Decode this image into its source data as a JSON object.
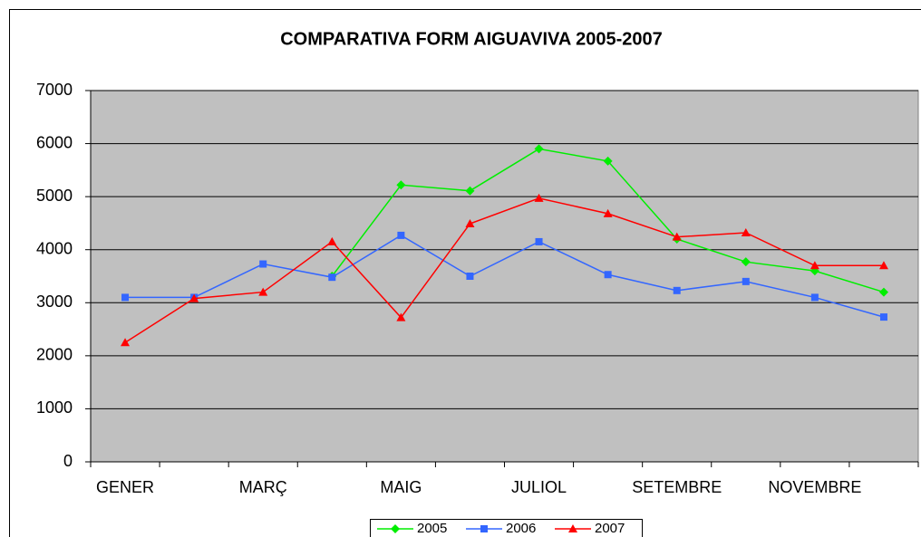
{
  "chart_data": {
    "type": "line",
    "title": "COMPARATIVA FORM AIGUAVIVA 2005-2007",
    "categories": [
      "GENER",
      null,
      "MARÇ",
      null,
      "MAIG",
      null,
      "JULIOL",
      null,
      "SETEMBRE",
      null,
      "NOVEMBRE",
      null
    ],
    "series": [
      {
        "name": "2005",
        "color": "#00ee00",
        "marker": "diamond",
        "values": [
          null,
          null,
          null,
          3500,
          5220,
          5110,
          5900,
          5670,
          4200,
          3770,
          3600,
          3200
        ]
      },
      {
        "name": "2006",
        "color": "#3366ff",
        "marker": "square",
        "values": [
          3100,
          3100,
          3730,
          3480,
          4270,
          3500,
          4150,
          3530,
          3230,
          3400,
          3100,
          2730
        ]
      },
      {
        "name": "2007",
        "color": "#ff0000",
        "marker": "triangle",
        "values": [
          2250,
          3080,
          3200,
          4150,
          2720,
          4490,
          4970,
          4680,
          4240,
          4320,
          3700,
          3700
        ]
      }
    ],
    "ylim": [
      0,
      7000
    ],
    "yticks": [
      0,
      1000,
      2000,
      3000,
      4000,
      5000,
      6000,
      7000
    ],
    "grid": true,
    "legend": "bottom"
  }
}
